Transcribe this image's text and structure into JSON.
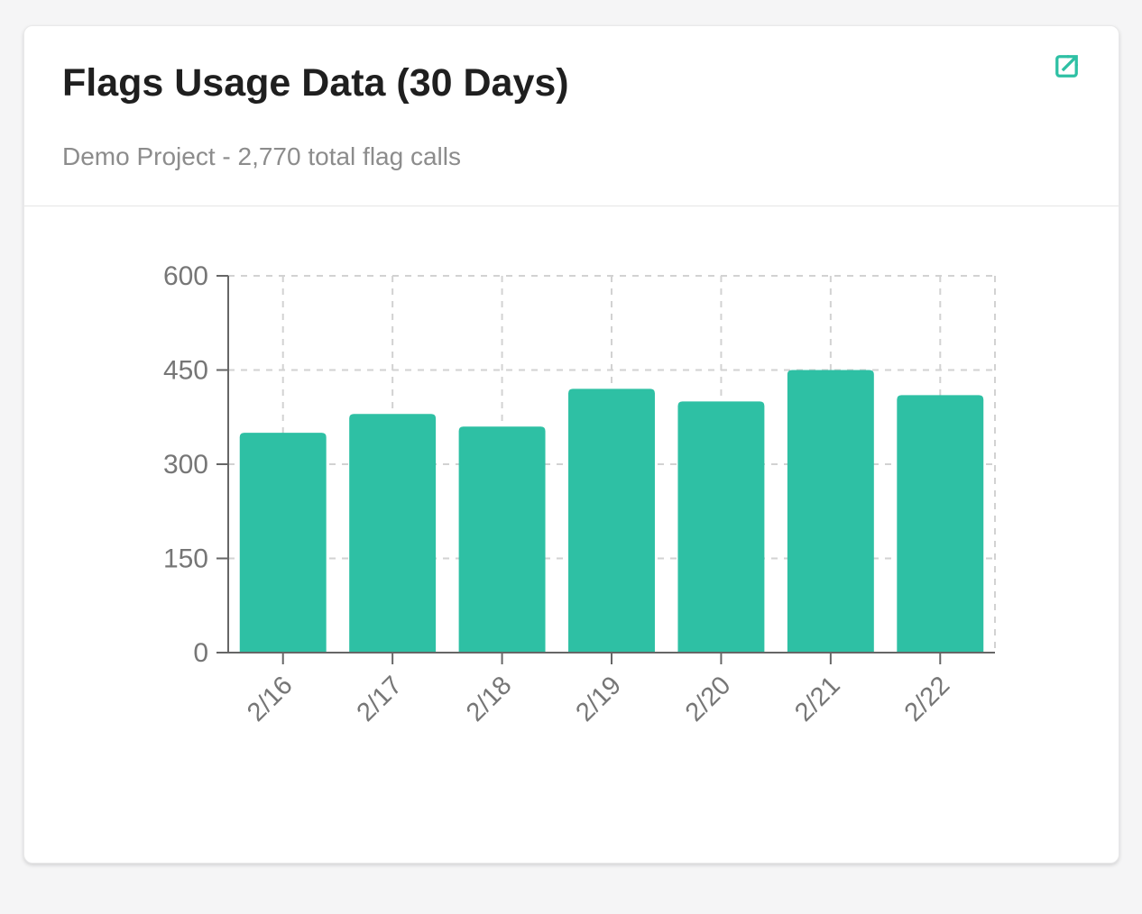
{
  "card": {
    "title": "Flags Usage Data (30 Days)",
    "subtitle": "Demo Project - 2,770 total flag calls",
    "expand_icon": "external-link-icon"
  },
  "colors": {
    "accent_teal": "#2ec0a4",
    "card_background": "#ffffff",
    "page_background": "#f5f5f6",
    "axis": "#666666",
    "tick_label": "#767676",
    "gridline": "#d2d2d2",
    "title_text": "#1f1f1f",
    "subtitle_text": "#8c8c8c"
  },
  "chart_data": {
    "type": "bar",
    "title": "Flags Usage Data (30 Days)",
    "subtitle": "Demo Project - 2,770 total flag calls",
    "series_name": "flag calls",
    "categories": [
      "2/16",
      "2/17",
      "2/18",
      "2/19",
      "2/20",
      "2/21",
      "2/22"
    ],
    "values": [
      350,
      380,
      360,
      420,
      400,
      450,
      410
    ],
    "total": 2770,
    "xlabel": "",
    "ylabel": "",
    "ylim": [
      0,
      600
    ],
    "yticks": [
      0,
      150,
      300,
      450,
      600
    ],
    "grid": "dashed horizontal and vertical gridlines, dashed right border",
    "legend": "none",
    "bar_color": "#2ec0a4",
    "x_label_rotation_deg": -45
  }
}
